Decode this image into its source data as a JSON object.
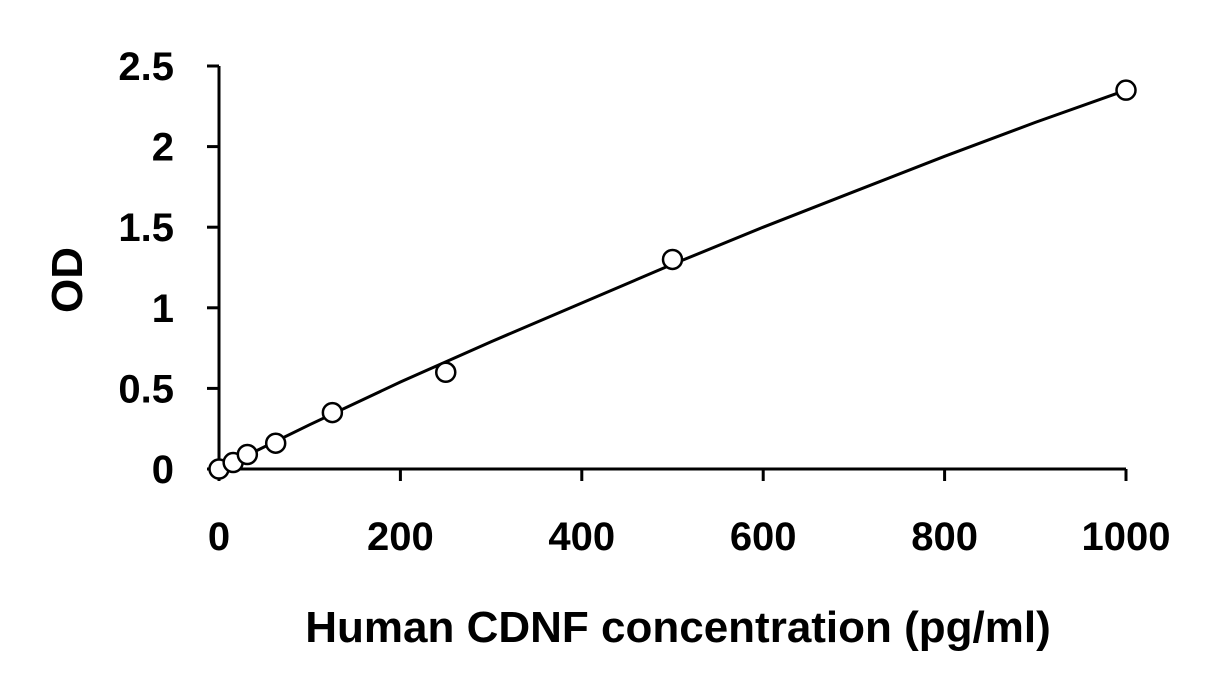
{
  "chart_data": {
    "type": "scatter",
    "title": "",
    "xlabel": "Human CDNF concentration (pg/ml)",
    "ylabel": "OD",
    "xlim": [
      0,
      1000
    ],
    "ylim": [
      0,
      2.5
    ],
    "x_ticks": [
      0,
      200,
      400,
      600,
      800,
      1000
    ],
    "y_ticks": [
      0,
      0.5,
      1,
      1.5,
      2,
      2.5
    ],
    "x_tick_labels": [
      "0",
      "200",
      "400",
      "600",
      "800",
      "1000"
    ],
    "y_tick_labels": [
      "0",
      "0.5",
      "1",
      "1.5",
      "2",
      "2.5"
    ],
    "grid": false,
    "legend": "none",
    "series": [
      {
        "x": [
          0,
          15.6,
          31.25,
          62.5,
          125,
          250,
          500,
          1000
        ],
        "y": [
          0.0,
          0.04,
          0.09,
          0.16,
          0.35,
          0.6,
          1.3,
          2.35
        ],
        "marker": "open-circle",
        "color": "#000000"
      }
    ],
    "fit_curve": {
      "x": [
        0,
        100,
        200,
        300,
        400,
        500,
        600,
        700,
        800,
        900,
        1000
      ],
      "y": [
        0.0,
        0.275,
        0.54,
        0.79,
        1.03,
        1.27,
        1.5,
        1.72,
        1.94,
        2.15,
        2.35
      ],
      "color": "#000000"
    }
  }
}
